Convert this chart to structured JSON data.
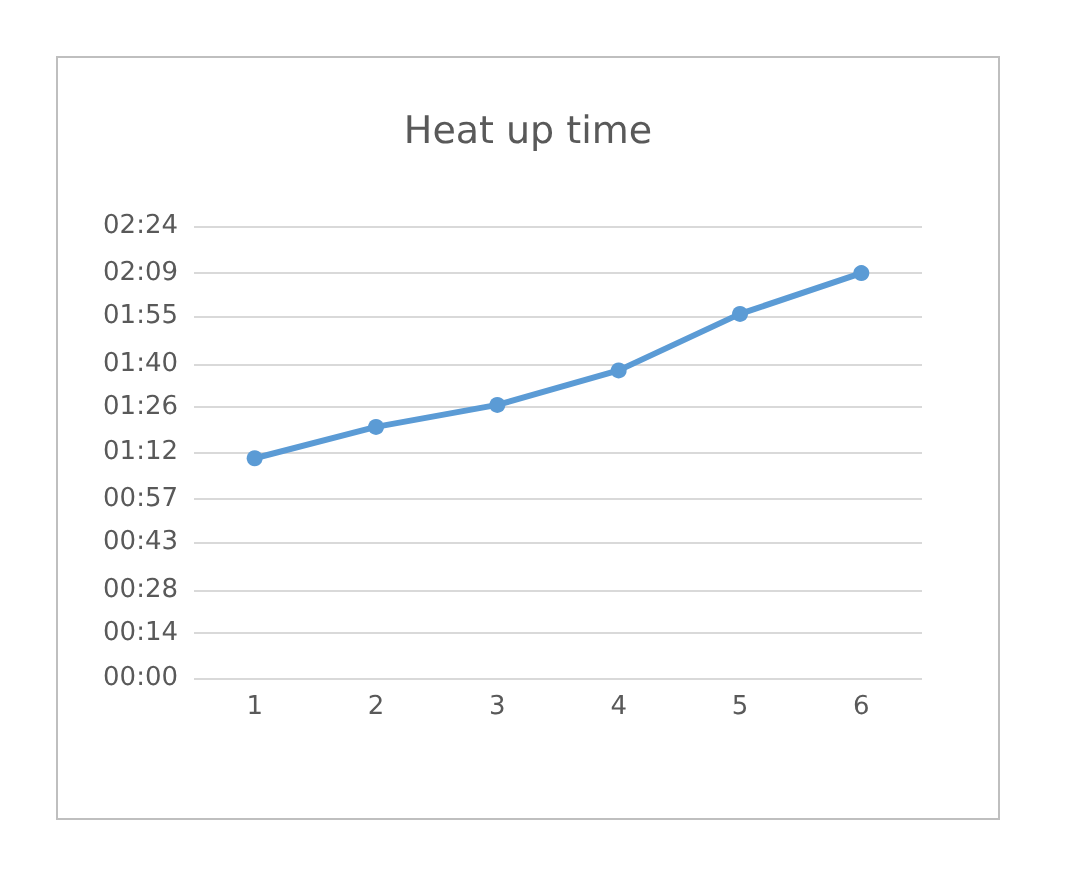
{
  "chart_data": {
    "type": "line",
    "title": "Heat up time",
    "categories": [
      "1",
      "2",
      "3",
      "4",
      "5",
      "6"
    ],
    "series": [
      {
        "color": "#5b9bd5",
        "values": [
          70,
          80,
          87,
          98,
          116,
          129
        ]
      }
    ],
    "ylim": [
      0,
      144
    ],
    "yticks": [
      {
        "value": 0,
        "label": "00:00"
      },
      {
        "value": 14.4,
        "label": "00:14"
      },
      {
        "value": 28,
        "label": "00:28"
      },
      {
        "value": 43.2,
        "label": "00:43"
      },
      {
        "value": 57,
        "label": "00:57"
      },
      {
        "value": 72,
        "label": "01:12"
      },
      {
        "value": 86.4,
        "label": "01:26"
      },
      {
        "value": 100,
        "label": "01:40"
      },
      {
        "value": 115.2,
        "label": "01:55"
      },
      {
        "value": 129,
        "label": "02:09"
      },
      {
        "value": 144,
        "label": "02:24"
      }
    ],
    "grid": "y",
    "marker": "circle",
    "line_style": "solid"
  }
}
